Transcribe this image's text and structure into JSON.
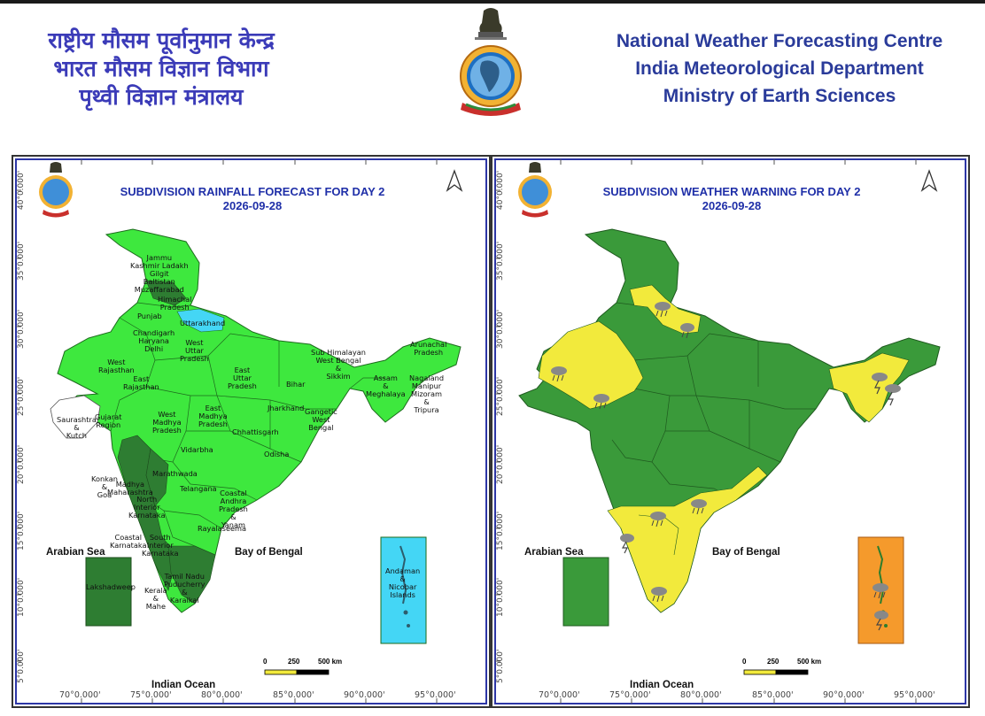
{
  "header": {
    "hindi_lines": [
      "राष्ट्रीय मौसम पूर्वानुमान केन्द्र",
      "भारत मौसम विज्ञान विभाग",
      "पृथ्वी विज्ञान मंत्रालय"
    ],
    "english_lines": [
      "National Weather Forecasting Centre",
      "India Meteorological Department",
      "Ministry of Earth Sciences"
    ],
    "emblem": "imd-emblem-icon"
  },
  "colors": {
    "light_green": "#3ee83e",
    "dark_green_forecast": "#2e7d32",
    "cyan": "#44d6f5",
    "warning_green": "#3a9a3a",
    "warning_yellow": "#f2ea3c",
    "warning_orange": "#f59a2c",
    "title_blue": "#1f2fa8"
  },
  "left_map": {
    "title": "SUBDIVISION RAINFALL FORECAST FOR DAY 2",
    "date": "2026-09-28",
    "lat_labels": [
      "40°0.000'",
      "35°0.000'",
      "30°0.000'",
      "25°0.000'",
      "20°0.000'",
      "15°0.000'",
      "10°0.000'",
      "5°0.000'"
    ],
    "lon_labels": [
      "70°0.000'",
      "75°0.000'",
      "80°0.000'",
      "85°0.000'",
      "90°0.000'",
      "95°0.000'"
    ],
    "seas": {
      "arabian": "Arabian Sea",
      "bengal": "Bay of Bengal",
      "indian": "Indian Ocean"
    },
    "scale": {
      "zero": "0",
      "mid": "250",
      "end": "500 km"
    },
    "regions": [
      {
        "label": "Jammu\nKashmir Ladakh\nGilgit\nBaltistan\nMuzaffarabad"
      },
      {
        "label": "Himachal\nPradesh"
      },
      {
        "label": "Punjab"
      },
      {
        "label": "Uttarakhand"
      },
      {
        "label": "Chandigarh\nHaryana\nDelhi"
      },
      {
        "label": "West\nUttar\nPradesh"
      },
      {
        "label": "West\nRajasthan"
      },
      {
        "label": "East\nRajasthan"
      },
      {
        "label": "East\nUttar\nPradesh"
      },
      {
        "label": "Bihar"
      },
      {
        "label": "Sub Himalayan\nWest Bengal\n&\nSikkim"
      },
      {
        "label": "Arunachal\nPradesh"
      },
      {
        "label": "Assam\n&\nMeghalaya"
      },
      {
        "label": "Nagaland\nManipur\nMizoram\n&\nTripura"
      },
      {
        "label": "Saurashtra\n&\nKutch"
      },
      {
        "label": "Gujarat\nRegion"
      },
      {
        "label": "West\nMadhya\nPradesh"
      },
      {
        "label": "East\nMadhya\nPradesh"
      },
      {
        "label": "Jharkhand"
      },
      {
        "label": "Gangetic\nWest\nBengal"
      },
      {
        "label": "Chhattisgarh"
      },
      {
        "label": "Odisha"
      },
      {
        "label": "Vidarbha"
      },
      {
        "label": "Konkan\n&\nGoa"
      },
      {
        "label": "Madhya\nMaharashtra"
      },
      {
        "label": "Marathwada"
      },
      {
        "label": "Telangana"
      },
      {
        "label": "North\nInterior\nKarnataka"
      },
      {
        "label": "Coastal\nAndhra\nPradesh\n&\nYanam"
      },
      {
        "label": "Rayalaseema"
      },
      {
        "label": "Coastal\nKarnataka"
      },
      {
        "label": "South\nInterior\nKarnataka"
      },
      {
        "label": "Tamil Nadu\nPuducherry\n&\nKaraikal"
      },
      {
        "label": "Kerala\n&\nMahe"
      },
      {
        "label": "Lakshadweep"
      },
      {
        "label": "Andaman\n&\nNicobar\nIslands"
      }
    ]
  },
  "right_map": {
    "title": "SUBDIVISION WEATHER WARNING FOR DAY 2",
    "date": "2026-09-28",
    "lat_labels": [
      "40°0.000'",
      "35°0.000'",
      "30°0.000'",
      "25°0.000'",
      "20°0.000'",
      "15°0.000'",
      "10°0.000'",
      "5°0.000'"
    ],
    "lon_labels": [
      "70°0.000'",
      "75°0.000'",
      "80°0.000'",
      "85°0.000'",
      "90°0.000'",
      "95°0.000'"
    ],
    "seas": {
      "arabian": "Arabian Sea",
      "bengal": "Bay of Bengal",
      "indian": "Indian Ocean"
    },
    "scale": {
      "zero": "0",
      "mid": "250",
      "end": "500 km"
    },
    "icons": [
      "thunderstorm-icon",
      "thunderstorm-lightning-icon"
    ]
  }
}
